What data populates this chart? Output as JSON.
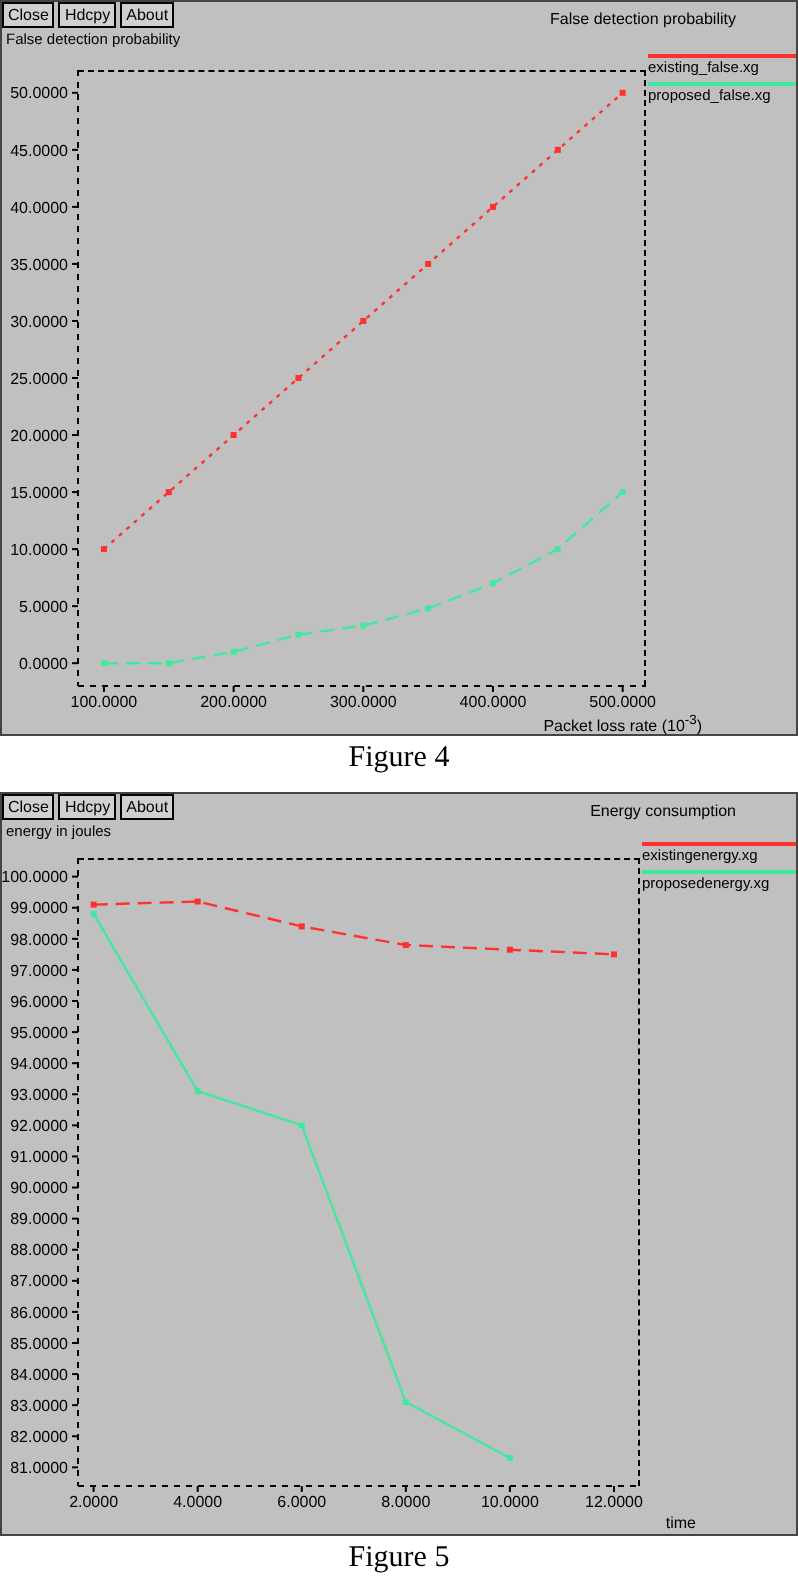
{
  "chart_data": [
    {
      "type": "line",
      "title": "False detection probability",
      "ylabel": "False detection probability",
      "xlabel": "Packet loss rate (10$^{-3}$)",
      "annotations": [
        "Close",
        "Hdcpy",
        "About",
        "Figure 4"
      ],
      "x": [
        100,
        150,
        200,
        250,
        300,
        350,
        400,
        450,
        500
      ],
      "series": [
        {
          "name": "existing_false.xg",
          "color": "#ff3030",
          "line_style": "dotted",
          "values": [
            10,
            15,
            20,
            25,
            30,
            35,
            40,
            45,
            50
          ]
        },
        {
          "name": "proposed_false.xg",
          "color": "#40e8a0",
          "line_style": "dashed",
          "values": [
            0,
            0,
            1,
            2.5,
            3.3,
            4.8,
            7,
            10,
            15
          ]
        }
      ],
      "xlim": [
        80,
        518
      ],
      "ylim": [
        -2,
        52
      ],
      "xticks": [
        {
          "value": 100,
          "label": "100.0000"
        },
        {
          "value": 200,
          "label": "200.0000"
        },
        {
          "value": 300,
          "label": "300.0000"
        },
        {
          "value": 400,
          "label": "400.0000"
        },
        {
          "value": 500,
          "label": "500.0000"
        }
      ],
      "yticks": [
        {
          "value": 0,
          "label": "0.0000"
        },
        {
          "value": 5,
          "label": "5.0000"
        },
        {
          "value": 10,
          "label": "10.0000"
        },
        {
          "value": 15,
          "label": "15.0000"
        },
        {
          "value": 20,
          "label": "20.0000"
        },
        {
          "value": 25,
          "label": "25.0000"
        },
        {
          "value": 30,
          "label": "30.0000"
        },
        {
          "value": 35,
          "label": "35.0000"
        },
        {
          "value": 40,
          "label": "40.0000"
        },
        {
          "value": 45,
          "label": "45.0000"
        },
        {
          "value": 50,
          "label": "50.0000"
        }
      ],
      "marker": "square",
      "legend": "right"
    },
    {
      "type": "line",
      "title": "Energy consumption",
      "ylabel": "energy in joules",
      "xlabel": "time",
      "annotations": [
        "Close",
        "Hdcpy",
        "About",
        "Figure 5"
      ],
      "x": [
        2,
        4,
        6,
        8,
        10,
        12
      ],
      "series": [
        {
          "name": "existingenergy.xg",
          "color": "#ff3030",
          "line_style": "dashed",
          "values": [
            99.1,
            99.2,
            98.4,
            97.8,
            97.65,
            97.5
          ]
        },
        {
          "name": "proposedenergy.xg",
          "color": "#40e8a0",
          "line_style": "solid",
          "values": [
            98.8,
            93.1,
            92.0,
            83.1,
            81.3,
            null
          ]
        }
      ],
      "xlim": [
        1.7,
        12.5
      ],
      "ylim": [
        80.4,
        100.6
      ],
      "xticks": [
        {
          "value": 2,
          "label": "2.0000"
        },
        {
          "value": 4,
          "label": "4.0000"
        },
        {
          "value": 6,
          "label": "6.0000"
        },
        {
          "value": 8,
          "label": "8.0000"
        },
        {
          "value": 10,
          "label": "10.0000"
        },
        {
          "value": 12,
          "label": "12.0000"
        }
      ],
      "yticks": [
        {
          "value": 81,
          "label": "81.0000"
        },
        {
          "value": 82,
          "label": "82.0000"
        },
        {
          "value": 83,
          "label": "83.0000"
        },
        {
          "value": 84,
          "label": "84.0000"
        },
        {
          "value": 85,
          "label": "85.0000"
        },
        {
          "value": 86,
          "label": "86.0000"
        },
        {
          "value": 87,
          "label": "87.0000"
        },
        {
          "value": 88,
          "label": "88.0000"
        },
        {
          "value": 89,
          "label": "89.0000"
        },
        {
          "value": 90,
          "label": "90.0000"
        },
        {
          "value": 91,
          "label": "91.0000"
        },
        {
          "value": 92,
          "label": "92.0000"
        },
        {
          "value": 93,
          "label": "93.0000"
        },
        {
          "value": 94,
          "label": "94.0000"
        },
        {
          "value": 95,
          "label": "95.0000"
        },
        {
          "value": 96,
          "label": "96.0000"
        },
        {
          "value": 97,
          "label": "97.0000"
        },
        {
          "value": 98,
          "label": "98.0000"
        },
        {
          "value": 99,
          "label": "99.0000"
        },
        {
          "value": 100,
          "label": "100.0000"
        }
      ],
      "marker": "square",
      "legend": "right"
    }
  ]
}
